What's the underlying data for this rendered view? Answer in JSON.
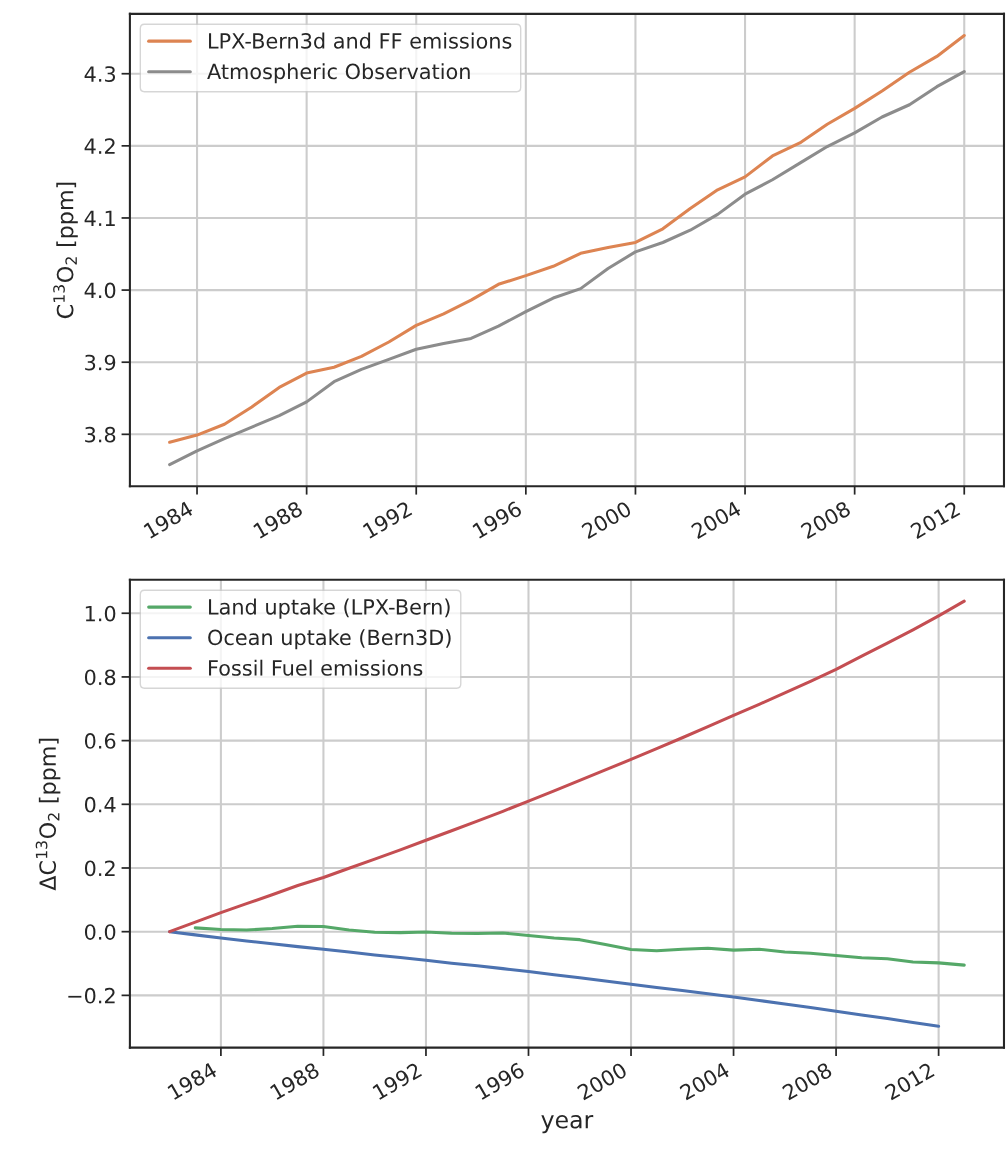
{
  "chart_data": [
    {
      "type": "line",
      "ylabel": "C$^{13}$O$_{2}$ [ppm]",
      "xlim": [
        1981.55,
        2013.45
      ],
      "ylim": [
        3.728,
        4.383
      ],
      "xticks": [
        1984,
        1988,
        1992,
        1996,
        2000,
        2004,
        2008,
        2012
      ],
      "yticks": [
        3.8,
        3.9,
        {
          "value": 4,
          "label": "4.0"
        },
        4.1,
        4.2,
        4.3
      ],
      "grid": true,
      "legend": "top left",
      "x": [
        1983,
        1984,
        1985,
        1986,
        1987,
        1988,
        1989,
        1990,
        1991,
        1992,
        1993,
        1994,
        1995,
        1996,
        1997,
        1998,
        1999,
        2000,
        2001,
        2002,
        2003,
        2004,
        2005,
        2006,
        2007,
        2008,
        2009,
        2010,
        2011,
        2012
      ],
      "series": [
        {
          "name": "LPX-Bern3d and FF emissions",
          "color": "#dd8452",
          "values": [
            3.789,
            3.799,
            3.814,
            3.838,
            3.865,
            3.885,
            3.893,
            3.908,
            3.928,
            3.951,
            3.967,
            3.986,
            4.008,
            4.02,
            4.033,
            4.051,
            4.059,
            4.066,
            4.085,
            4.113,
            4.139,
            4.157,
            4.186,
            4.204,
            4.23,
            4.252,
            4.276,
            4.302,
            4.324,
            4.353
          ]
        },
        {
          "name": "Atmospheric Observation",
          "color": "#8c8c8c",
          "values": [
            3.758,
            3.777,
            3.794,
            3.81,
            3.826,
            3.845,
            3.873,
            3.89,
            3.904,
            3.918,
            3.926,
            3.933,
            3.95,
            3.97,
            3.989,
            4.002,
            4.03,
            4.053,
            4.066,
            4.083,
            4.105,
            4.133,
            4.153,
            4.176,
            4.199,
            4.218,
            4.24,
            4.257,
            4.282,
            4.303
          ]
        }
      ]
    },
    {
      "type": "line",
      "xlabel": "year",
      "ylabel": "ΔC$^{13}$O$_{2}$ [ppm]",
      "xlim": [
        1980.45,
        2014.55
      ],
      "ylim": [
        -0.364,
        1.105
      ],
      "xticks": [
        1984,
        1988,
        1992,
        1996,
        2000,
        2004,
        2008,
        2012
      ],
      "yticks": [
        {
          "value": -0.2,
          "label": "−0.2"
        },
        {
          "value": 0,
          "label": "0.0"
        },
        0.2,
        0.4,
        0.6,
        0.8,
        {
          "value": 1,
          "label": "1.0"
        }
      ],
      "grid": true,
      "legend": "top left",
      "series": [
        {
          "name": "Land uptake (LPX-Bern)",
          "color": "#55a868",
          "x": [
            1983,
            1984,
            1985,
            1986,
            1987,
            1988,
            1989,
            1990,
            1991,
            1992,
            1993,
            1994,
            1995,
            1996,
            1997,
            1998,
            1999,
            2000,
            2001,
            2002,
            2003,
            2004,
            2005,
            2006,
            2007,
            2008,
            2009,
            2010,
            2011,
            2012,
            2013
          ],
          "values": [
            0.012,
            0.007,
            0.005,
            0.01,
            0.017,
            0.016,
            0.005,
            -0.002,
            -0.003,
            -0.001,
            -0.005,
            -0.006,
            -0.004,
            -0.012,
            -0.02,
            -0.025,
            -0.04,
            -0.056,
            -0.06,
            -0.055,
            -0.052,
            -0.058,
            -0.055,
            -0.064,
            -0.068,
            -0.075,
            -0.082,
            -0.085,
            -0.095,
            -0.098,
            -0.105
          ]
        },
        {
          "name": "Ocean uptake (Bern3D)",
          "color": "#4c72b0",
          "x": [
            1982,
            1983,
            1984,
            1985,
            1986,
            1987,
            1988,
            1989,
            1990,
            1991,
            1992,
            1993,
            1994,
            1995,
            1996,
            1997,
            1998,
            1999,
            2000,
            2001,
            2002,
            2003,
            2004,
            2005,
            2006,
            2007,
            2008,
            2009,
            2010,
            2011,
            2012
          ],
          "values": [
            0.0,
            -0.01,
            -0.02,
            -0.029,
            -0.038,
            -0.047,
            -0.055,
            -0.064,
            -0.073,
            -0.081,
            -0.09,
            -0.099,
            -0.107,
            -0.116,
            -0.125,
            -0.135,
            -0.145,
            -0.155,
            -0.165,
            -0.175,
            -0.185,
            -0.195,
            -0.205,
            -0.216,
            -0.227,
            -0.238,
            -0.25,
            -0.262,
            -0.273,
            -0.285,
            -0.297
          ]
        },
        {
          "name": "Fossil Fuel emissions",
          "color": "#c44e52",
          "x": [
            1982,
            1983,
            1984,
            1985,
            1986,
            1987,
            1988,
            1989,
            1990,
            1991,
            1992,
            1993,
            1994,
            1995,
            1996,
            1997,
            1998,
            1999,
            2000,
            2001,
            2002,
            2003,
            2004,
            2005,
            2006,
            2007,
            2008,
            2009,
            2010,
            2011,
            2012,
            2013
          ],
          "values": [
            0.0,
            0.03,
            0.06,
            0.088,
            0.116,
            0.145,
            0.17,
            0.199,
            0.228,
            0.257,
            0.287,
            0.317,
            0.347,
            0.378,
            0.41,
            0.442,
            0.475,
            0.508,
            0.541,
            0.575,
            0.609,
            0.644,
            0.679,
            0.714,
            0.75,
            0.786,
            0.824,
            0.865,
            0.906,
            0.948,
            0.992,
            1.038
          ]
        }
      ]
    }
  ]
}
